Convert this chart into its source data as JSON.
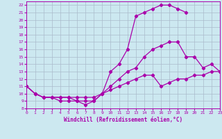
{
  "xlabel": "Windchill (Refroidissement éolien,°C)",
  "bg_color": "#cce8f0",
  "grid_color": "#aabbcc",
  "line_color": "#aa00aa",
  "xmin": 0,
  "xmax": 23,
  "ymin": 8,
  "ymax": 22.5,
  "line1_x": [
    0,
    1,
    2,
    3,
    4,
    5,
    6,
    7,
    8,
    9,
    10,
    11,
    12,
    13,
    14,
    15,
    16,
    17,
    18,
    19
  ],
  "line1_y": [
    11,
    10,
    9.5,
    9.5,
    9.5,
    9.5,
    9,
    9,
    9,
    10,
    13,
    14,
    16,
    20.5,
    21,
    21.5,
    22,
    22,
    21.5,
    21
  ],
  "line2_x": [
    0,
    1,
    2,
    3,
    4,
    5,
    6,
    7,
    8,
    9,
    10,
    11,
    12,
    13,
    14,
    15,
    16,
    17,
    18,
    19,
    20,
    21,
    22,
    23
  ],
  "line2_y": [
    11,
    10,
    9.5,
    9.5,
    9,
    9,
    9,
    8.5,
    9,
    10,
    11,
    12,
    13,
    13.5,
    15,
    16,
    16.5,
    17,
    17,
    15,
    15,
    13.5,
    14,
    13
  ],
  "line3_x": [
    0,
    1,
    2,
    3,
    4,
    5,
    6,
    7,
    8,
    9,
    10,
    11,
    12,
    13,
    14,
    15,
    16,
    17,
    18,
    19,
    20,
    21,
    22,
    23
  ],
  "line3_y": [
    11,
    10,
    9.5,
    9.5,
    9.5,
    9.5,
    9.5,
    9.5,
    9.5,
    10,
    10.5,
    11,
    11.5,
    12,
    12.5,
    12.5,
    11,
    11.5,
    12,
    12,
    12.5,
    12.5,
    13,
    13
  ],
  "yticks": [
    8,
    9,
    10,
    11,
    12,
    13,
    14,
    15,
    16,
    17,
    18,
    19,
    20,
    21,
    22
  ],
  "xticks": [
    0,
    1,
    2,
    3,
    4,
    5,
    6,
    7,
    8,
    9,
    10,
    11,
    12,
    13,
    14,
    15,
    16,
    17,
    18,
    19,
    20,
    21,
    22,
    23
  ]
}
